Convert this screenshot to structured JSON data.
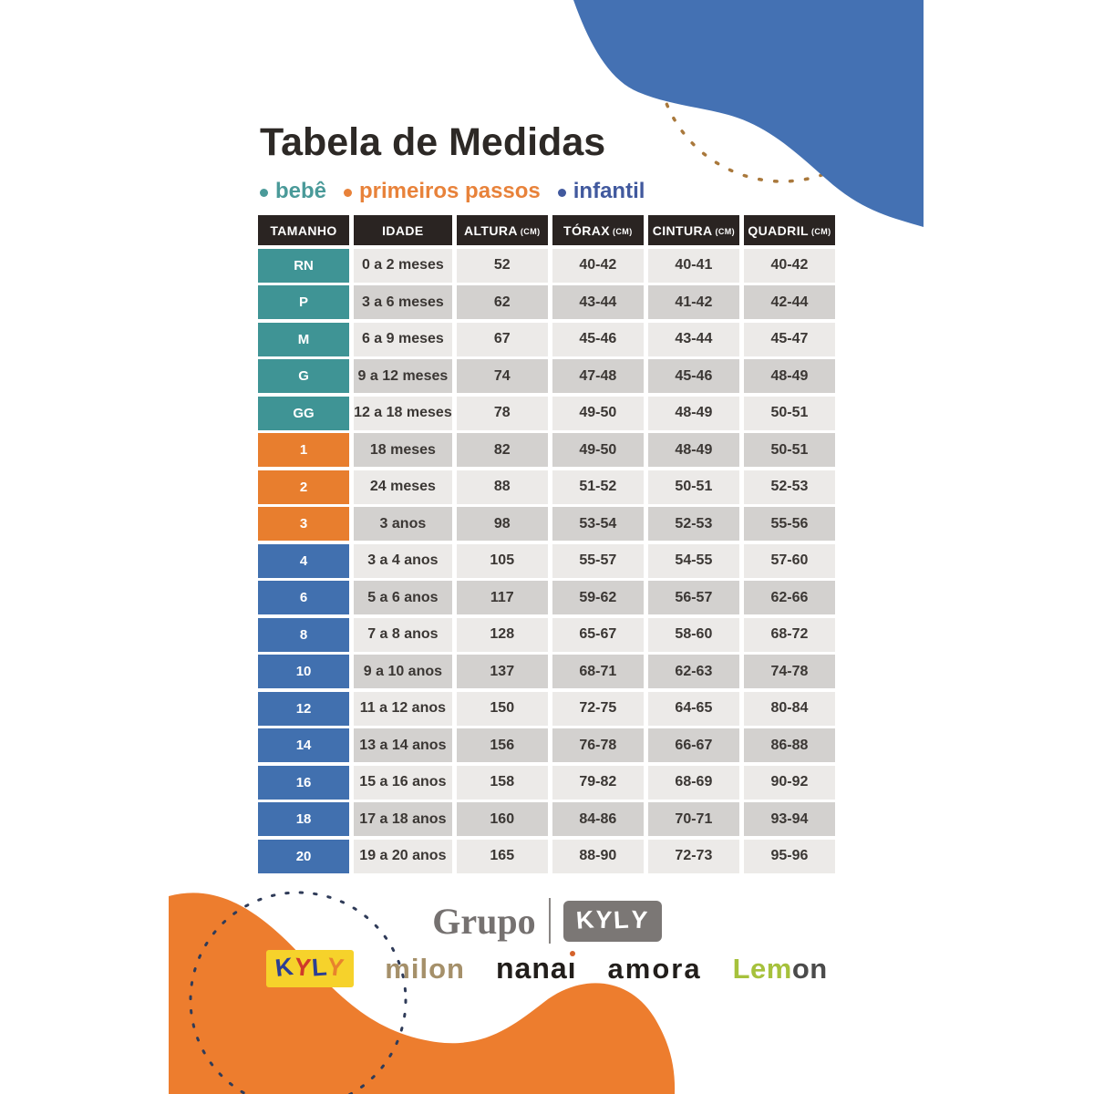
{
  "title": "Tabela de Medidas",
  "legend": [
    {
      "label": "bebê",
      "color": "#4a9a99"
    },
    {
      "label": "primeiros passos",
      "color": "#e8823a"
    },
    {
      "label": "infantil",
      "color": "#41599e"
    }
  ],
  "table": {
    "headers": [
      {
        "label": "TAMANHO",
        "unit": ""
      },
      {
        "label": "IDADE",
        "unit": ""
      },
      {
        "label": "ALTURA",
        "unit": "(CM)"
      },
      {
        "label": "TÓRAX",
        "unit": "(CM)"
      },
      {
        "label": "CINTURA",
        "unit": "(CM)"
      },
      {
        "label": "QUADRIL",
        "unit": "(CM)"
      }
    ],
    "rows": [
      {
        "tamanho": "RN",
        "idade": "0 a 2 meses",
        "altura": "52",
        "torax": "40-42",
        "cintura": "40-41",
        "quadril": "40-42",
        "group": "bebe"
      },
      {
        "tamanho": "P",
        "idade": "3 a 6 meses",
        "altura": "62",
        "torax": "43-44",
        "cintura": "41-42",
        "quadril": "42-44",
        "group": "bebe"
      },
      {
        "tamanho": "M",
        "idade": "6 a 9 meses",
        "altura": "67",
        "torax": "45-46",
        "cintura": "43-44",
        "quadril": "45-47",
        "group": "bebe"
      },
      {
        "tamanho": "G",
        "idade": "9 a 12 meses",
        "altura": "74",
        "torax": "47-48",
        "cintura": "45-46",
        "quadril": "48-49",
        "group": "bebe"
      },
      {
        "tamanho": "GG",
        "idade": "12 a 18 meses",
        "altura": "78",
        "torax": "49-50",
        "cintura": "48-49",
        "quadril": "50-51",
        "group": "bebe"
      },
      {
        "tamanho": "1",
        "idade": "18 meses",
        "altura": "82",
        "torax": "49-50",
        "cintura": "48-49",
        "quadril": "50-51",
        "group": "primeiros_passos"
      },
      {
        "tamanho": "2",
        "idade": "24 meses",
        "altura": "88",
        "torax": "51-52",
        "cintura": "50-51",
        "quadril": "52-53",
        "group": "primeiros_passos"
      },
      {
        "tamanho": "3",
        "idade": "3 anos",
        "altura": "98",
        "torax": "53-54",
        "cintura": "52-53",
        "quadril": "55-56",
        "group": "primeiros_passos"
      },
      {
        "tamanho": "4",
        "idade": "3 a 4 anos",
        "altura": "105",
        "torax": "55-57",
        "cintura": "54-55",
        "quadril": "57-60",
        "group": "infantil"
      },
      {
        "tamanho": "6",
        "idade": "5 a 6 anos",
        "altura": "117",
        "torax": "59-62",
        "cintura": "56-57",
        "quadril": "62-66",
        "group": "infantil"
      },
      {
        "tamanho": "8",
        "idade": "7 a 8 anos",
        "altura": "128",
        "torax": "65-67",
        "cintura": "58-60",
        "quadril": "68-72",
        "group": "infantil"
      },
      {
        "tamanho": "10",
        "idade": "9 a 10 anos",
        "altura": "137",
        "torax": "68-71",
        "cintura": "62-63",
        "quadril": "74-78",
        "group": "infantil"
      },
      {
        "tamanho": "12",
        "idade": "11 a 12 anos",
        "altura": "150",
        "torax": "72-75",
        "cintura": "64-65",
        "quadril": "80-84",
        "group": "infantil"
      },
      {
        "tamanho": "14",
        "idade": "13 a 14 anos",
        "altura": "156",
        "torax": "76-78",
        "cintura": "66-67",
        "quadril": "86-88",
        "group": "infantil"
      },
      {
        "tamanho": "16",
        "idade": "15 a 16 anos",
        "altura": "158",
        "torax": "79-82",
        "cintura": "68-69",
        "quadril": "90-92",
        "group": "infantil"
      },
      {
        "tamanho": "18",
        "idade": "17 a 18 anos",
        "altura": "160",
        "torax": "84-86",
        "cintura": "70-71",
        "quadril": "93-94",
        "group": "infantil"
      },
      {
        "tamanho": "20",
        "idade": "19 a 20 anos",
        "altura": "165",
        "torax": "88-90",
        "cintura": "72-73",
        "quadril": "95-96",
        "group": "infantil"
      }
    ]
  },
  "footer": {
    "grupo_text": "Grupo",
    "grupo_kyly_text": "KYLY",
    "brands": {
      "kyly": {
        "bg": "#f6d22b",
        "letters": [
          {
            "ch": "K",
            "color": "#2c3f93"
          },
          {
            "ch": "Y",
            "color": "#cf3a2b"
          },
          {
            "ch": "L",
            "color": "#2c3f93"
          },
          {
            "ch": "Y",
            "color": "#e8832d"
          }
        ]
      },
      "milon": {
        "text": "milon",
        "color": "#a5906a"
      },
      "nanai": {
        "text": "nanai",
        "color": "#221e1b",
        "i_dot_color": "#d4622a"
      },
      "amora": {
        "text": "amora",
        "color": "#221e1b"
      },
      "lemon": {
        "parts": [
          {
            "text": "Lem",
            "color": "#a6c13c"
          },
          {
            "text": "o",
            "color": "#4b4b4b"
          },
          {
            "text": "n",
            "color": "#4b4b4b"
          }
        ]
      }
    }
  },
  "colors": {
    "header_bg": "#2a2422",
    "header_text": "#ffffff",
    "group_bebe": "#3f9495",
    "group_primeiros_passos": "#e87e2e",
    "group_infantil": "#4170af",
    "size_text": "#ffffff",
    "row_light": "#eceae8",
    "row_dark": "#d3d1cf",
    "cell_text": "#3b3734",
    "title_text": "#2d2926",
    "blob_blue": "#4471b3",
    "blob_orange": "#ed7d2e",
    "dash_orange": "#a9783b",
    "dash_navy": "#2f3b58",
    "grupo_gray": "#757170"
  }
}
